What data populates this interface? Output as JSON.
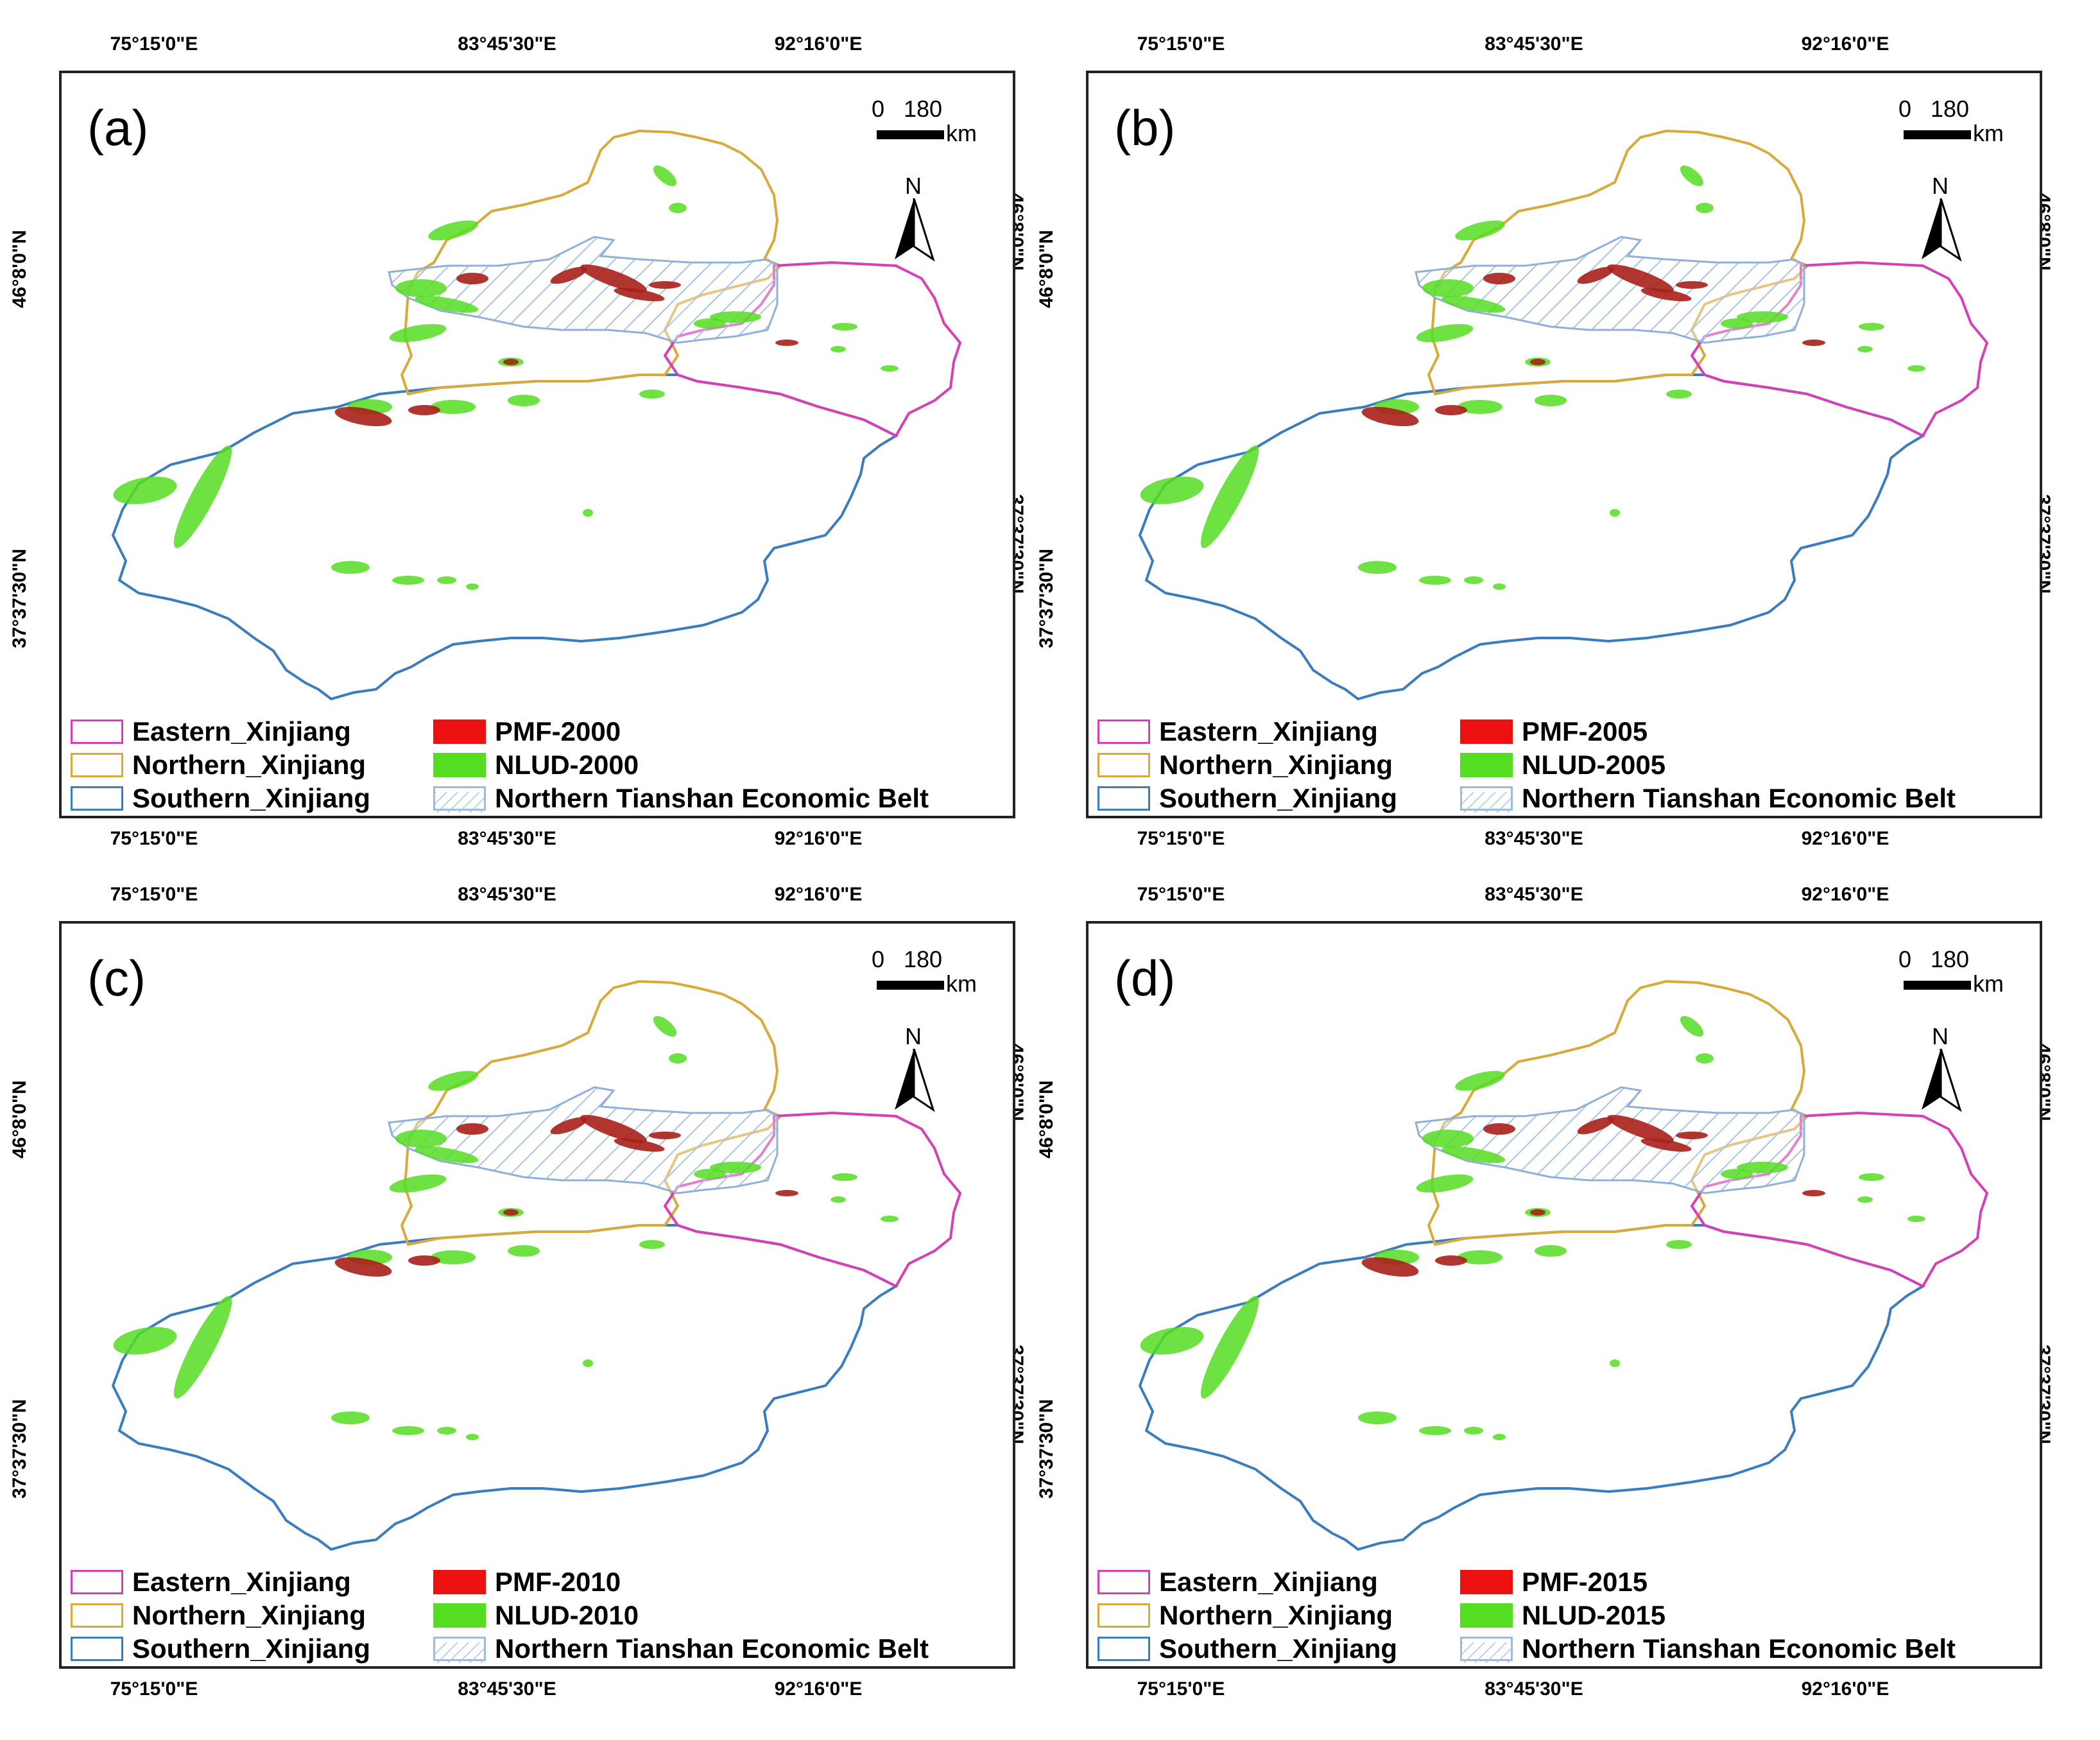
{
  "axes": {
    "lon_ticks": [
      "75°15'0\"E",
      "83°45'30\"E",
      "92°16'0\"E"
    ],
    "lat_ticks": [
      "46°8'0\"N",
      "37°37'30\"N"
    ]
  },
  "scale_bar": {
    "zero": "0",
    "max": "180",
    "unit": "km"
  },
  "north_label": "N",
  "colors": {
    "eastern": "#d63fb5",
    "northern": "#d9a93a",
    "southern": "#3a7cc0",
    "pmf": "#ee1111",
    "nlud": "#55dd22",
    "belt": "#9dbbe0"
  },
  "legend_static": {
    "eastern": "Eastern_Xinjiang",
    "northern": "Northern_Xinjiang",
    "southern": "Southern_Xinjiang",
    "belt": "Northern Tianshan Economic Belt"
  },
  "panels": [
    {
      "label": "(a)",
      "pmf": "PMF-2000",
      "nlud": "NLUD-2000"
    },
    {
      "label": "(b)",
      "pmf": "PMF-2005",
      "nlud": "NLUD-2005"
    },
    {
      "label": "(c)",
      "pmf": "PMF-2010",
      "nlud": "NLUD-2010"
    },
    {
      "label": "(d)",
      "pmf": "PMF-2015",
      "nlud": "NLUD-2015"
    }
  ]
}
